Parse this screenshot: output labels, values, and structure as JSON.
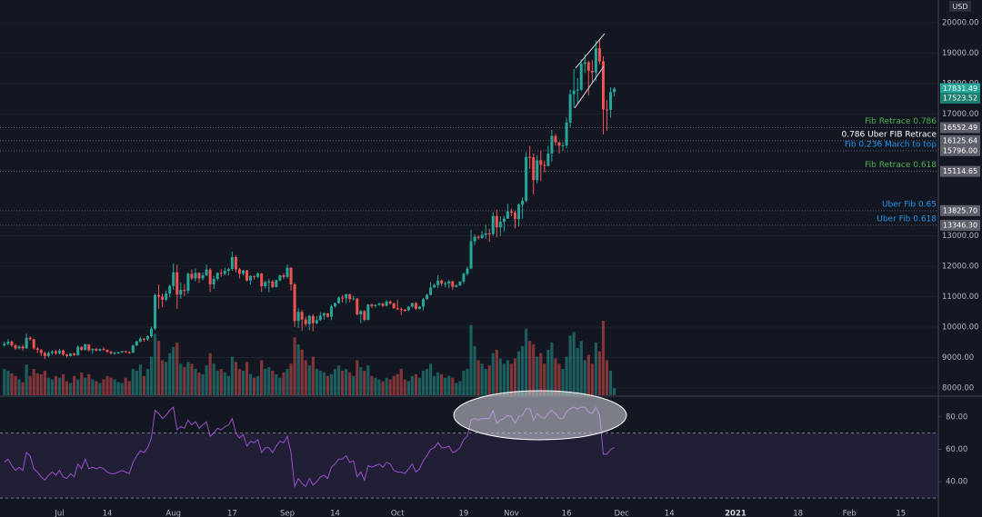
{
  "chart_data": [
    {
      "type": "candlestick",
      "currency": "USD",
      "up_color": "#26a69a",
      "down_color": "#ef5350",
      "xlim": [
        -1.2,
        254.2
      ],
      "ylim": [
        7761,
        20746
      ],
      "yticks": [
        {
          "value": 8000,
          "label": "8000.00"
        },
        {
          "value": 9000,
          "label": "9000.00"
        },
        {
          "value": 10000,
          "label": "10000.00"
        },
        {
          "value": 11000,
          "label": "11000.00"
        },
        {
          "value": 12000,
          "label": "12000.00"
        },
        {
          "value": 13000,
          "label": "13000.00"
        },
        {
          "value": 17000,
          "label": "17000.00"
        },
        {
          "value": 18000,
          "label": "18000.00"
        },
        {
          "value": 19000,
          "label": "19000.00"
        },
        {
          "value": 20000,
          "label": "20000.00"
        }
      ],
      "grid": true,
      "open": [
        9400,
        9450,
        9520,
        9400,
        9300,
        9360,
        9300,
        9650,
        9600,
        9300,
        9250,
        9150,
        9050,
        9150,
        9200,
        9140,
        9230,
        9100,
        9050,
        9130,
        9080,
        9350,
        9250,
        9430,
        9240,
        9280,
        9230,
        9280,
        9250,
        9190,
        9140,
        9150,
        9170,
        9210,
        9180,
        9160,
        9400,
        9530,
        9620,
        9600,
        9700,
        9950,
        11050,
        11000,
        10900,
        11100,
        11350,
        11800,
        11070,
        11220,
        11190,
        11750,
        11600,
        11780,
        11600,
        11700,
        11890,
        11400,
        11580,
        11780,
        11750,
        11850,
        11910,
        12300,
        11900,
        11750,
        11860,
        11530,
        11680,
        11650,
        11760,
        11340,
        11480,
        11500,
        11320,
        11540,
        11700,
        11650,
        11950,
        11400,
        10200,
        10500,
        10250,
        10100,
        10370,
        10130,
        10230,
        10380,
        10450,
        10340,
        10680,
        10790,
        10970,
        10950,
        11080,
        10920,
        10940,
        10420,
        10530,
        10240,
        10740,
        10690,
        10730,
        10770,
        10700,
        10840,
        10780,
        10620,
        10600,
        10570,
        10550,
        10670,
        10790,
        10600,
        10670,
        10920,
        11060,
        11300,
        11380,
        11530,
        11430,
        11430,
        11500,
        11320,
        11370,
        11500,
        11750,
        11920,
        12820,
        12970,
        12930,
        13030,
        13080,
        13060,
        13650,
        13280,
        13460,
        13560,
        13800,
        13760,
        13550,
        14020,
        14150,
        15590,
        15580,
        14830,
        15480,
        15330,
        15300,
        15700,
        16280,
        16070,
        15960,
        15970,
        16720,
        17650,
        17770,
        17800,
        18650,
        18700,
        18420,
        18370,
        19160,
        18730,
        17150,
        17140,
        17720
      ],
      "high": [
        9520,
        9600,
        9560,
        9450,
        9400,
        9420,
        9780,
        9700,
        9620,
        9350,
        9280,
        9200,
        9200,
        9240,
        9260,
        9280,
        9260,
        9130,
        9150,
        9160,
        9400,
        9370,
        9460,
        9440,
        9300,
        9320,
        9300,
        9340,
        9270,
        9220,
        9200,
        9190,
        9220,
        9230,
        9200,
        9420,
        9550,
        9680,
        9640,
        9730,
        10020,
        11100,
        11400,
        11100,
        11200,
        11400,
        12100,
        12050,
        11470,
        11410,
        11800,
        11900,
        11930,
        11800,
        11800,
        12050,
        11940,
        11680,
        11800,
        11900,
        11950,
        11950,
        12480,
        12350,
        11950,
        11880,
        11880,
        11700,
        11690,
        11800,
        11780,
        11530,
        11590,
        11550,
        11560,
        11720,
        11770,
        12050,
        11970,
        11450,
        10620,
        10560,
        10350,
        10400,
        10430,
        10360,
        10490,
        10480,
        10470,
        10740,
        10800,
        11010,
        11050,
        11090,
        11100,
        11030,
        10960,
        10560,
        10560,
        10760,
        10770,
        10740,
        10800,
        10800,
        10890,
        10880,
        10800,
        10900,
        10650,
        10600,
        10690,
        10800,
        10820,
        10700,
        10950,
        11100,
        11470,
        11430,
        11700,
        11560,
        11500,
        11550,
        11530,
        11400,
        11510,
        11800,
        11990,
        13200,
        13050,
        13020,
        13160,
        13350,
        13230,
        13780,
        13860,
        13640,
        13650,
        14050,
        13890,
        13820,
        14060,
        14260,
        15750,
        15960,
        15700,
        15650,
        15800,
        15470,
        15960,
        16480,
        16350,
        16100,
        16080,
        16880,
        17800,
        18480,
        18180,
        18800,
        18960,
        18750,
        18770,
        19420,
        19480,
        18900,
        17460,
        17880,
        17880
      ],
      "low": [
        9350,
        9400,
        9350,
        9250,
        9260,
        9220,
        9280,
        9550,
        9260,
        9150,
        9050,
        8950,
        9000,
        9100,
        9080,
        9100,
        9050,
        9000,
        9030,
        9050,
        9060,
        9220,
        9230,
        9200,
        9120,
        9200,
        9200,
        9220,
        9150,
        9100,
        9100,
        9120,
        9150,
        9150,
        9120,
        9150,
        9380,
        9500,
        9520,
        9550,
        9650,
        9900,
        10600,
        10650,
        10850,
        10980,
        11230,
        10600,
        10930,
        11020,
        11100,
        11550,
        11500,
        11450,
        11530,
        11670,
        11150,
        11250,
        11520,
        11650,
        11700,
        11700,
        11850,
        11800,
        11600,
        11700,
        11500,
        11400,
        11560,
        11600,
        11150,
        11270,
        11150,
        11280,
        11300,
        11500,
        11580,
        11600,
        11200,
        10000,
        9980,
        9880,
        10020,
        9900,
        9860,
        10090,
        10200,
        10250,
        10310,
        10230,
        10640,
        10760,
        10800,
        10780,
        10820,
        10880,
        10380,
        10130,
        10190,
        10220,
        10630,
        10640,
        10700,
        10650,
        10680,
        10740,
        10600,
        10560,
        10400,
        10500,
        10520,
        10640,
        10560,
        10580,
        10550,
        10900,
        11040,
        11290,
        11280,
        11350,
        11300,
        11280,
        11230,
        11300,
        11350,
        11420,
        11690,
        11900,
        12700,
        12880,
        12900,
        12900,
        12800,
        13000,
        12950,
        12990,
        13140,
        13580,
        13650,
        13240,
        13300,
        13560,
        14100,
        15200,
        14360,
        14720,
        14800,
        15090,
        15280,
        15440,
        15960,
        15710,
        15790,
        15870,
        16570,
        17210,
        17350,
        17750,
        18350,
        17610,
        18000,
        18080,
        18630,
        16330,
        16450,
        16880,
        17580
      ],
      "close": [
        9450,
        9520,
        9400,
        9300,
        9360,
        9300,
        9650,
        9600,
        9300,
        9250,
        9150,
        9050,
        9150,
        9200,
        9140,
        9230,
        9100,
        9050,
        9130,
        9080,
        9350,
        9250,
        9430,
        9240,
        9280,
        9230,
        9280,
        9250,
        9190,
        9140,
        9150,
        9170,
        9210,
        9180,
        9160,
        9400,
        9530,
        9620,
        9600,
        9700,
        9950,
        11050,
        11000,
        10900,
        11100,
        11350,
        11800,
        11070,
        11220,
        11190,
        11750,
        11600,
        11780,
        11600,
        11700,
        11890,
        11400,
        11580,
        11780,
        11750,
        11850,
        11910,
        12300,
        11900,
        11750,
        11860,
        11530,
        11680,
        11650,
        11760,
        11340,
        11480,
        11500,
        11320,
        11540,
        11700,
        11650,
        11950,
        11400,
        10200,
        10500,
        10250,
        10100,
        10370,
        10130,
        10230,
        10380,
        10450,
        10340,
        10680,
        10790,
        10970,
        10950,
        11080,
        10920,
        10940,
        10420,
        10530,
        10240,
        10740,
        10690,
        10730,
        10770,
        10700,
        10840,
        10780,
        10620,
        10600,
        10570,
        10550,
        10670,
        10790,
        10600,
        10670,
        10920,
        11060,
        11300,
        11380,
        11530,
        11430,
        11430,
        11500,
        11320,
        11370,
        11500,
        11750,
        11920,
        12820,
        12970,
        12930,
        13030,
        13080,
        13060,
        13650,
        13280,
        13460,
        13560,
        13800,
        13760,
        13550,
        14020,
        14150,
        15590,
        15580,
        14830,
        15480,
        15330,
        15300,
        15700,
        16280,
        16070,
        15960,
        15970,
        16720,
        17650,
        17770,
        17800,
        18650,
        18700,
        18420,
        18370,
        19160,
        18730,
        17150,
        17140,
        17720,
        17831
      ],
      "volume": [
        30,
        28,
        25,
        22,
        18,
        15,
        35,
        22,
        30,
        25,
        24,
        28,
        20,
        18,
        22,
        20,
        24,
        16,
        14,
        22,
        18,
        26,
        20,
        24,
        18,
        16,
        14,
        18,
        22,
        20,
        18,
        15,
        14,
        20,
        16,
        30,
        28,
        35,
        22,
        30,
        44,
        70,
        62,
        40,
        38,
        48,
        55,
        60,
        36,
        32,
        38,
        36,
        30,
        26,
        24,
        34,
        48,
        36,
        28,
        30,
        26,
        22,
        44,
        38,
        30,
        28,
        38,
        24,
        20,
        22,
        40,
        30,
        32,
        28,
        24,
        20,
        26,
        30,
        36,
        66,
        58,
        52,
        40,
        34,
        44,
        30,
        28,
        26,
        22,
        24,
        30,
        34,
        28,
        30,
        26,
        22,
        40,
        32,
        28,
        34,
        22,
        20,
        18,
        16,
        20,
        18,
        22,
        24,
        30,
        18,
        16,
        22,
        24,
        20,
        28,
        30,
        36,
        22,
        26,
        24,
        20,
        22,
        20,
        14,
        16,
        28,
        30,
        80,
        56,
        40,
        36,
        30,
        34,
        48,
        52,
        42,
        36,
        40,
        36,
        42,
        50,
        56,
        76,
        62,
        58,
        44,
        48,
        36,
        52,
        60,
        42,
        36,
        30,
        44,
        68,
        72,
        54,
        62,
        40,
        46,
        36,
        60,
        50,
        85,
        40,
        28,
        8
      ],
      "levels": [
        {
          "name": "Fib Retrace 0.786",
          "price": 16552.49,
          "color": "#4caf50"
        },
        {
          "name": "0.786 Uber FIB Retrace",
          "price": 16125.64,
          "color": "#ffffff"
        },
        {
          "name": "Fib 0.236 March to top",
          "price": {
            "value": 15796,
            "label": "15796.00"
          },
          "color": "#2196f3"
        },
        {
          "name": "Fib Retrace 0.618",
          "price": 15114.65,
          "color": "#4caf50"
        },
        {
          "name": "Uber Fib 0.65",
          "price": {
            "value": 13825.7,
            "label": "13825.70"
          },
          "color": "#2196f3"
        },
        {
          "name": "Uber Fib 0.618",
          "price": {
            "value": 13346.3,
            "label": "13346.30"
          },
          "color": "#2196f3"
        }
      ],
      "price_tags": [
        {
          "price": 17831.49,
          "color": "#26a69a"
        },
        {
          "price": 17523.52,
          "color": "#1e7f71"
        }
      ]
    },
    {
      "type": "line",
      "color": "#9c4dcc",
      "band_color": "#7e57c2",
      "xlim": [
        -1.2,
        254.2
      ],
      "ylim": [
        18.3,
        92.2
      ],
      "yticks": [
        {
          "value": 40,
          "label": "40.00"
        },
        {
          "value": 60,
          "label": "60.00"
        },
        {
          "value": 80,
          "label": "80.00"
        }
      ],
      "bands": [
        30,
        70
      ],
      "xticks": [
        {
          "value": 15,
          "label": "Jul"
        },
        {
          "value": 28,
          "label": "14"
        },
        {
          "value": 46,
          "label": "Aug"
        },
        {
          "value": 62,
          "label": "17"
        },
        {
          "value": 77,
          "label": "Sep"
        },
        {
          "value": 90,
          "label": "14"
        },
        {
          "value": 107,
          "label": "Oct"
        },
        {
          "value": 125,
          "label": "19"
        },
        {
          "value": 138,
          "label": "Nov"
        },
        {
          "value": 153,
          "label": "16"
        },
        {
          "value": 168,
          "label": "Dec"
        },
        {
          "value": 181,
          "label": "14"
        },
        {
          "value": 199,
          "label": "2021"
        },
        {
          "value": 216,
          "label": "18"
        },
        {
          "value": 230,
          "label": "Feb"
        },
        {
          "value": 244,
          "label": "15"
        }
      ],
      "values": [
        52,
        54,
        50,
        47,
        49,
        47,
        58,
        56,
        48,
        46,
        43,
        41,
        44,
        46,
        44,
        47,
        43,
        42,
        45,
        43,
        51,
        48,
        54,
        48,
        49,
        48,
        49,
        48,
        46,
        45,
        45,
        46,
        47,
        46,
        45,
        52,
        56,
        59,
        58,
        61,
        67,
        84,
        82,
        79,
        81,
        84,
        86,
        72,
        74,
        73,
        78,
        75,
        77,
        73,
        75,
        77,
        68,
        70,
        73,
        72,
        74,
        75,
        79,
        70,
        67,
        69,
        62,
        65,
        64,
        66,
        58,
        61,
        61,
        58,
        62,
        65,
        64,
        68,
        58,
        37,
        42,
        39,
        37,
        42,
        38,
        40,
        43,
        44,
        42,
        49,
        51,
        54,
        54,
        56,
        52,
        53,
        43,
        46,
        41,
        50,
        49,
        50,
        51,
        49,
        52,
        51,
        47,
        46,
        46,
        45,
        48,
        51,
        46,
        48,
        53,
        56,
        60,
        61,
        64,
        61,
        61,
        62,
        58,
        59,
        61,
        66,
        68,
        78,
        79,
        78,
        79,
        79,
        79,
        84,
        76,
        78,
        79,
        81,
        80,
        76,
        80,
        81,
        85,
        85,
        78,
        82,
        80,
        79,
        82,
        84,
        82,
        79,
        79,
        83,
        85,
        86,
        85,
        86,
        86,
        83,
        82,
        86,
        81,
        57,
        57,
        60,
        61
      ]
    }
  ]
}
